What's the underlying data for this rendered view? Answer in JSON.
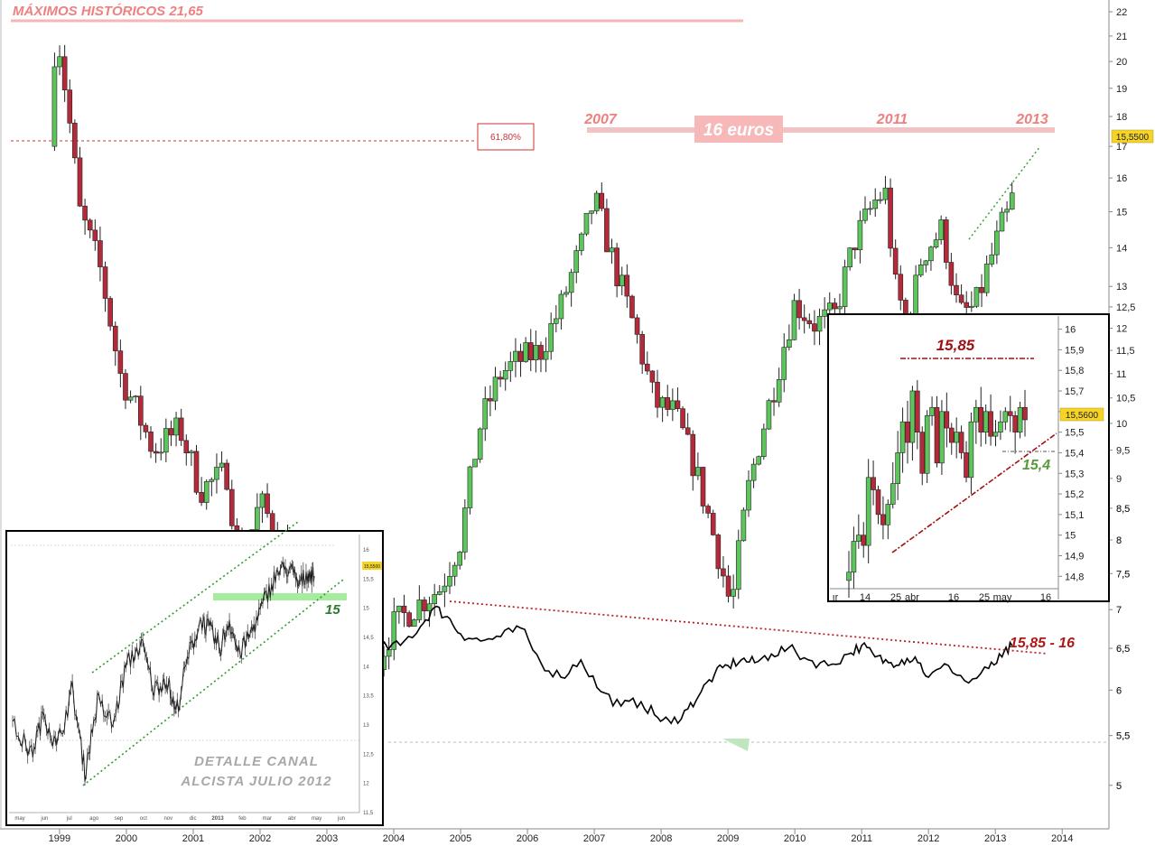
{
  "chart_data": {
    "type": "candlestick",
    "y_scale": "log",
    "ylim": [
      4.6,
      22.5
    ],
    "y_ticks": [
      "22",
      "21",
      "20",
      "19",
      "18",
      "17",
      "16",
      "15",
      "14",
      "13",
      "12,5",
      "12",
      "11,5",
      "11",
      "10,5",
      "10",
      "9,5",
      "9",
      "8,5",
      "8",
      "7,5",
      "7",
      "6,5",
      "6",
      "5,5",
      "5"
    ],
    "x_ticks": [
      "1999",
      "2000",
      "2001",
      "2002",
      "2003",
      "2004",
      "2005",
      "2006",
      "2007",
      "2008",
      "2009",
      "2010",
      "2011",
      "2012",
      "2013",
      "2014"
    ],
    "price_path": [
      [
        1998.85,
        17.0
      ],
      [
        1998.95,
        21.5
      ],
      [
        1999.3,
        15.0
      ],
      [
        1999.6,
        13.5
      ],
      [
        1999.9,
        11.0
      ],
      [
        2000.4,
        9.5
      ],
      [
        2000.8,
        9.9
      ],
      [
        2001.1,
        8.8
      ],
      [
        2001.5,
        9.1
      ],
      [
        2001.7,
        7.5
      ],
      [
        2002.0,
        8.6
      ],
      [
        2002.3,
        8.0
      ],
      [
        2002.6,
        7.3
      ],
      [
        2002.85,
        7.1
      ],
      [
        2003.05,
        5.5
      ],
      [
        2003.25,
        5.2
      ],
      [
        2003.6,
        6.0
      ],
      [
        2004.0,
        6.8
      ],
      [
        2004.4,
        7.1
      ],
      [
        2004.7,
        7.3
      ],
      [
        2005.0,
        8.0
      ],
      [
        2005.3,
        10.0
      ],
      [
        2005.6,
        11.0
      ],
      [
        2005.9,
        11.3
      ],
      [
        2006.2,
        11.5
      ],
      [
        2006.5,
        12.5
      ],
      [
        2006.8,
        14.0
      ],
      [
        2007.0,
        15.4
      ],
      [
        2007.3,
        13.5
      ],
      [
        2007.6,
        12.0
      ],
      [
        2007.9,
        10.4
      ],
      [
        2008.2,
        10.2
      ],
      [
        2008.5,
        9.2
      ],
      [
        2008.8,
        8.0
      ],
      [
        2009.05,
        7.0
      ],
      [
        2009.3,
        8.8
      ],
      [
        2009.7,
        10.8
      ],
      [
        2010.0,
        12.6
      ],
      [
        2010.3,
        12.1
      ],
      [
        2010.6,
        12.3
      ],
      [
        2010.9,
        14.2
      ],
      [
        2011.2,
        15.3
      ],
      [
        2011.35,
        15.6
      ],
      [
        2011.5,
        13.0
      ],
      [
        2011.7,
        12.0
      ],
      [
        2011.9,
        13.8
      ],
      [
        2012.2,
        14.5
      ],
      [
        2012.45,
        12.3
      ],
      [
        2012.7,
        12.5
      ],
      [
        2012.95,
        13.8
      ],
      [
        2013.1,
        14.6
      ],
      [
        2013.25,
        15.55
      ]
    ],
    "oscillator_path": [
      [
        2003.0,
        62
      ],
      [
        2003.2,
        75
      ],
      [
        2003.5,
        78
      ],
      [
        2003.8,
        70
      ],
      [
        2004.1,
        72
      ],
      [
        2004.4,
        85
      ],
      [
        2004.6,
        98
      ],
      [
        2004.8,
        92
      ],
      [
        2005.0,
        80
      ],
      [
        2005.3,
        75
      ],
      [
        2005.6,
        78
      ],
      [
        2005.9,
        84
      ],
      [
        2006.2,
        60
      ],
      [
        2006.5,
        50
      ],
      [
        2006.8,
        62
      ],
      [
        2007.1,
        40
      ],
      [
        2007.4,
        30
      ],
      [
        2007.7,
        33
      ],
      [
        2007.95,
        22
      ],
      [
        2008.15,
        18
      ],
      [
        2008.4,
        28
      ],
      [
        2008.6,
        40
      ],
      [
        2008.8,
        52
      ],
      [
        2009.0,
        58
      ],
      [
        2009.2,
        62
      ],
      [
        2009.4,
        60
      ],
      [
        2009.65,
        66
      ],
      [
        2009.9,
        70
      ],
      [
        2010.2,
        62
      ],
      [
        2010.5,
        58
      ],
      [
        2010.8,
        66
      ],
      [
        2011.0,
        72
      ],
      [
        2011.2,
        64
      ],
      [
        2011.4,
        60
      ],
      [
        2011.6,
        62
      ],
      [
        2011.8,
        64
      ],
      [
        2012.0,
        50
      ],
      [
        2012.3,
        58
      ],
      [
        2012.6,
        46
      ],
      [
        2012.9,
        56
      ],
      [
        2013.1,
        64
      ],
      [
        2013.25,
        72
      ]
    ],
    "annotations": {
      "historic_high": "MÁXIMOS HISTÓRICOS 21,65",
      "fib_level": "61,80%",
      "resistance_label": "16 euros",
      "peak_labels": [
        "2007",
        "2011",
        "2013"
      ],
      "last_price": "15,5500",
      "oscillator_target": "15,85 - 16"
    },
    "inset_daily": {
      "ylim": [
        14.74,
        16.02
      ],
      "y_ticks": [
        "16",
        "15,9",
        "15,8",
        "15,7",
        "15,6",
        "15,5",
        "15,4",
        "15,3",
        "15,2",
        "15,1",
        "15",
        "14,9",
        "14,8"
      ],
      "x_ticks": [
        "ır",
        "14",
        "25",
        "abr",
        "16",
        "25",
        "may",
        "16"
      ],
      "resistance": "15,85",
      "support": "15,4",
      "last_price": "15,5600",
      "outer_scale": [
        "8,5",
        "8",
        "7,5",
        "7",
        "6,5",
        "6",
        "5,5",
        "5"
      ],
      "closes": [
        14.82,
        14.97,
        15.0,
        14.95,
        15.28,
        15.22,
        15.1,
        15.05,
        15.15,
        15.25,
        15.4,
        15.55,
        15.45,
        15.7,
        15.5,
        15.3,
        15.58,
        15.62,
        15.35,
        15.6,
        15.52,
        15.45,
        15.5,
        15.4,
        15.28,
        15.55,
        15.62,
        15.5,
        15.6,
        15.48,
        15.5,
        15.55,
        15.6,
        15.58,
        15.5,
        15.62,
        15.56
      ]
    },
    "inset_channel": {
      "title_line1": "DETALLE CANAL",
      "title_line2": "ALCISTA JULIO 2012",
      "level_label": "15",
      "last_price": "15,5500",
      "ylim": [
        11.5,
        16.2
      ],
      "y_ticks": [
        "16",
        "15,5",
        "15",
        "14,5",
        "14",
        "13,5",
        "13",
        "12,5",
        "12",
        "11,5"
      ],
      "x_ticks": [
        "may",
        "jun",
        "jul",
        "ago",
        "sep",
        "oct",
        "nov",
        "dic",
        "2013",
        "feb",
        "mar",
        "abr",
        "may",
        "jun"
      ],
      "path": [
        [
          0,
          13.0
        ],
        [
          0.06,
          12.5
        ],
        [
          0.1,
          13.2
        ],
        [
          0.14,
          12.6
        ],
        [
          0.19,
          13.6
        ],
        [
          0.23,
          12.2
        ],
        [
          0.27,
          13.4
        ],
        [
          0.32,
          13.0
        ],
        [
          0.36,
          14.0
        ],
        [
          0.41,
          14.4
        ],
        [
          0.45,
          13.6
        ],
        [
          0.49,
          13.8
        ],
        [
          0.52,
          13.2
        ],
        [
          0.56,
          14.2
        ],
        [
          0.6,
          14.8
        ],
        [
          0.63,
          14.6
        ],
        [
          0.66,
          14.3
        ],
        [
          0.69,
          14.8
        ],
        [
          0.72,
          14.2
        ],
        [
          0.76,
          14.6
        ],
        [
          0.8,
          15.1
        ],
        [
          0.84,
          15.6
        ],
        [
          0.88,
          15.7
        ],
        [
          0.91,
          15.4
        ],
        [
          0.94,
          15.6
        ],
        [
          0.96,
          15.55
        ]
      ]
    }
  }
}
